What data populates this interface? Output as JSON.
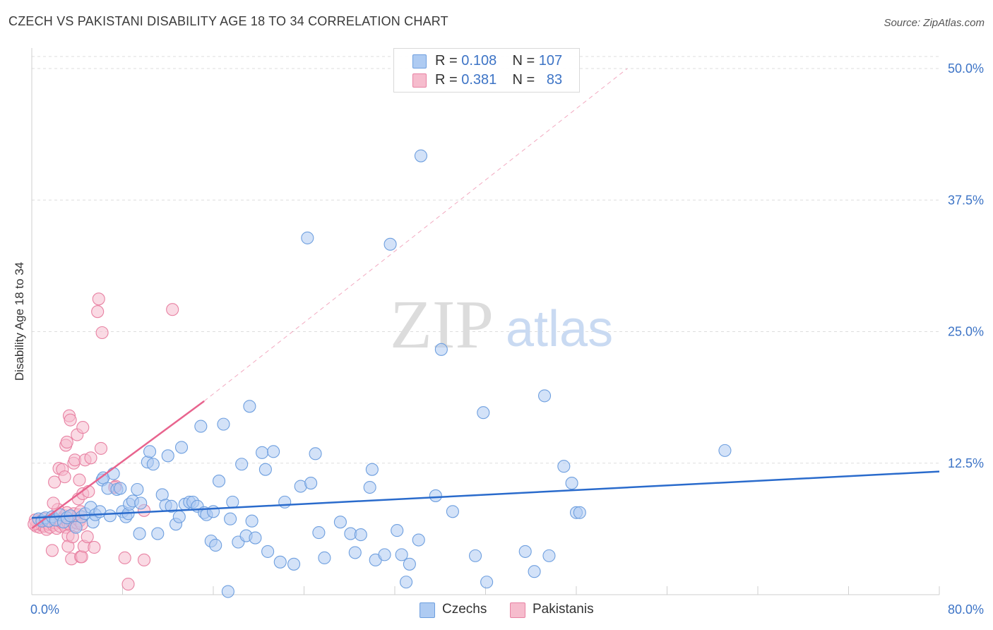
{
  "header": {
    "title": "CZECH VS PAKISTANI DISABILITY AGE 18 TO 34 CORRELATION CHART",
    "source": "Source: ZipAtlas.com"
  },
  "watermark": {
    "zip": "ZIP",
    "atlas": "atlas"
  },
  "legend": {
    "czech": {
      "r_label": "R =",
      "r_value": "0.108",
      "n_label": "N =",
      "n_value": "107",
      "color": "#aecbf2"
    },
    "pakistani": {
      "r_label": "R =",
      "r_value": "0.381",
      "n_label": "N =",
      "n_value": "83",
      "color": "#f6bccd"
    }
  },
  "bottom_legend": {
    "czechs": "Czechs",
    "pakistanis": "Pakistanis"
  },
  "colors": {
    "czech_fill": "#aecbf2",
    "czech_stroke": "#6e9fdf",
    "czech_line": "#2a6bcc",
    "pak_fill": "#f6bccd",
    "pak_stroke": "#e882a3",
    "pak_line": "#e8648e",
    "tick_text": "#3d74c6",
    "grid": "#dddddd"
  },
  "chart_data": {
    "type": "scatter",
    "title": "CZECH VS PAKISTANI DISABILITY AGE 18 TO 34 CORRELATION CHART",
    "xlabel": "",
    "ylabel": "Disability Age 18 to 34",
    "xlim": [
      0,
      80
    ],
    "ylim": [
      0,
      50
    ],
    "x_tick_labels": [
      {
        "value": 0,
        "label": "0.0%"
      },
      {
        "value": 80,
        "label": "80.0%"
      }
    ],
    "y_tick_labels": [
      {
        "value": 12.5,
        "label": "12.5%"
      },
      {
        "value": 25,
        "label": "25.0%"
      },
      {
        "value": 37.5,
        "label": "37.5%"
      },
      {
        "value": 50,
        "label": "50.0%"
      }
    ],
    "grid": true,
    "legend_position": "top-center",
    "series": [
      {
        "name": "Czechs",
        "color": "#aecbf2",
        "trendline": {
          "x": [
            0,
            80
          ],
          "y": [
            7.3,
            11.7
          ],
          "style": "solid"
        },
        "points": [
          [
            0.6,
            7.2
          ],
          [
            0.9,
            7.0
          ],
          [
            1.2,
            7.3
          ],
          [
            1.5,
            7.0
          ],
          [
            1.8,
            7.4
          ],
          [
            2.1,
            7.1
          ],
          [
            2.5,
            7.6
          ],
          [
            2.8,
            6.9
          ],
          [
            3.1,
            7.3
          ],
          [
            3.4,
            7.5
          ],
          [
            3.9,
            6.4
          ],
          [
            4.4,
            7.4
          ],
          [
            4.7,
            7.7
          ],
          [
            5.2,
            8.3
          ],
          [
            5.4,
            6.9
          ],
          [
            5.6,
            7.6
          ],
          [
            6.0,
            7.9
          ],
          [
            6.2,
            10.9
          ],
          [
            6.3,
            11.1
          ],
          [
            6.7,
            10.1
          ],
          [
            6.9,
            7.5
          ],
          [
            7.2,
            11.5
          ],
          [
            7.5,
            10.0
          ],
          [
            7.8,
            10.1
          ],
          [
            8.0,
            7.9
          ],
          [
            8.3,
            7.4
          ],
          [
            8.5,
            7.7
          ],
          [
            8.6,
            8.6
          ],
          [
            8.9,
            8.9
          ],
          [
            9.3,
            10.0
          ],
          [
            9.5,
            5.8
          ],
          [
            9.6,
            8.7
          ],
          [
            10.2,
            12.6
          ],
          [
            10.4,
            13.6
          ],
          [
            10.7,
            12.4
          ],
          [
            11.1,
            5.8
          ],
          [
            11.5,
            9.5
          ],
          [
            11.8,
            8.5
          ],
          [
            12.0,
            13.2
          ],
          [
            12.3,
            8.4
          ],
          [
            12.7,
            6.7
          ],
          [
            13.0,
            7.4
          ],
          [
            13.2,
            14.0
          ],
          [
            13.5,
            8.6
          ],
          [
            13.9,
            8.8
          ],
          [
            14.2,
            8.8
          ],
          [
            14.6,
            8.4
          ],
          [
            14.9,
            16.0
          ],
          [
            15.2,
            7.8
          ],
          [
            15.4,
            7.6
          ],
          [
            15.8,
            5.1
          ],
          [
            16.0,
            7.9
          ],
          [
            16.2,
            4.7
          ],
          [
            16.5,
            10.8
          ],
          [
            16.9,
            16.2
          ],
          [
            17.3,
            0.3
          ],
          [
            17.5,
            7.2
          ],
          [
            17.7,
            8.8
          ],
          [
            18.2,
            5.0
          ],
          [
            18.5,
            12.4
          ],
          [
            18.9,
            5.6
          ],
          [
            19.2,
            17.9
          ],
          [
            19.4,
            7.0
          ],
          [
            19.7,
            5.4
          ],
          [
            20.3,
            13.5
          ],
          [
            20.6,
            11.9
          ],
          [
            20.8,
            4.1
          ],
          [
            21.3,
            13.6
          ],
          [
            21.9,
            3.1
          ],
          [
            22.3,
            8.8
          ],
          [
            23.1,
            2.9
          ],
          [
            23.7,
            10.3
          ],
          [
            24.3,
            33.9
          ],
          [
            24.6,
            10.6
          ],
          [
            25.0,
            13.4
          ],
          [
            25.3,
            5.9
          ],
          [
            25.8,
            3.5
          ],
          [
            27.2,
            6.9
          ],
          [
            28.1,
            5.8
          ],
          [
            28.5,
            4.0
          ],
          [
            29.0,
            5.7
          ],
          [
            29.8,
            10.2
          ],
          [
            30.0,
            11.9
          ],
          [
            30.3,
            3.3
          ],
          [
            31.1,
            3.8
          ],
          [
            31.6,
            33.3
          ],
          [
            32.2,
            6.1
          ],
          [
            32.6,
            3.8
          ],
          [
            33.0,
            1.2
          ],
          [
            33.3,
            2.9
          ],
          [
            34.1,
            5.2
          ],
          [
            34.3,
            41.7
          ],
          [
            35.6,
            9.4
          ],
          [
            36.1,
            23.3
          ],
          [
            37.1,
            7.9
          ],
          [
            39.1,
            3.7
          ],
          [
            39.8,
            17.3
          ],
          [
            40.1,
            1.2
          ],
          [
            43.5,
            4.1
          ],
          [
            44.3,
            2.2
          ],
          [
            45.2,
            18.9
          ],
          [
            45.6,
            3.7
          ],
          [
            46.9,
            12.2
          ],
          [
            47.6,
            10.6
          ],
          [
            48.0,
            7.8
          ],
          [
            48.3,
            7.8
          ],
          [
            61.1,
            13.7
          ]
        ]
      },
      {
        "name": "Pakistanis",
        "color": "#f6bccd",
        "trendline": {
          "x": [
            0,
            15.2
          ],
          "y": [
            6.3,
            18.4
          ],
          "style": "solid",
          "dashed_extension_to": [
            52.5,
            50
          ]
        },
        "points": [
          [
            0.4,
            6.5
          ],
          [
            0.5,
            6.8
          ],
          [
            0.6,
            7.0
          ],
          [
            0.7,
            6.4
          ],
          [
            0.8,
            6.9
          ],
          [
            0.9,
            6.6
          ],
          [
            1.0,
            7.2
          ],
          [
            1.1,
            6.5
          ],
          [
            1.2,
            6.9
          ],
          [
            1.3,
            6.2
          ],
          [
            1.4,
            7.0
          ],
          [
            1.5,
            6.7
          ],
          [
            1.6,
            6.4
          ],
          [
            1.7,
            6.9
          ],
          [
            1.8,
            7.4
          ],
          [
            1.9,
            6.6
          ],
          [
            2.0,
            7.1
          ],
          [
            2.1,
            6.8
          ],
          [
            2.2,
            6.3
          ],
          [
            2.3,
            8.1
          ],
          [
            2.4,
            7.0
          ],
          [
            2.5,
            6.5
          ],
          [
            2.6,
            6.9
          ],
          [
            2.7,
            7.2
          ],
          [
            2.8,
            6.7
          ],
          [
            2.9,
            7.5
          ],
          [
            3.0,
            6.4
          ],
          [
            3.1,
            7.8
          ],
          [
            3.2,
            6.8
          ],
          [
            3.3,
            7.1
          ],
          [
            3.4,
            6.6
          ],
          [
            3.5,
            7.4
          ],
          [
            3.6,
            6.9
          ],
          [
            3.7,
            7.7
          ],
          [
            3.8,
            6.5
          ],
          [
            3.9,
            7.2
          ],
          [
            4.0,
            6.8
          ],
          [
            4.1,
            7.6
          ],
          [
            4.2,
            7.0
          ],
          [
            4.3,
            7.9
          ],
          [
            4.4,
            6.7
          ],
          [
            0.3,
            7.1
          ],
          [
            0.2,
            6.7
          ],
          [
            1.9,
            8.7
          ],
          [
            1.8,
            4.2
          ],
          [
            2.0,
            10.7
          ],
          [
            2.4,
            12.0
          ],
          [
            2.7,
            11.9
          ],
          [
            2.9,
            11.2
          ],
          [
            3.0,
            14.2
          ],
          [
            3.1,
            14.5
          ],
          [
            3.2,
            5.6
          ],
          [
            3.2,
            4.6
          ],
          [
            3.3,
            17.0
          ],
          [
            3.4,
            16.6
          ],
          [
            3.5,
            3.4
          ],
          [
            3.6,
            5.5
          ],
          [
            3.7,
            12.5
          ],
          [
            3.8,
            12.8
          ],
          [
            4.0,
            15.2
          ],
          [
            4.1,
            9.1
          ],
          [
            4.2,
            10.9
          ],
          [
            4.3,
            3.6
          ],
          [
            4.4,
            3.6
          ],
          [
            4.5,
            15.9
          ],
          [
            4.5,
            9.6
          ],
          [
            4.6,
            4.6
          ],
          [
            4.7,
            12.8
          ],
          [
            4.9,
            5.5
          ],
          [
            5.0,
            9.8
          ],
          [
            5.2,
            13.0
          ],
          [
            5.5,
            4.5
          ],
          [
            5.9,
            28.1
          ],
          [
            5.8,
            26.9
          ],
          [
            6.2,
            24.9
          ],
          [
            6.1,
            13.9
          ],
          [
            7.4,
            10.3
          ],
          [
            7.3,
            10.2
          ],
          [
            8.2,
            3.5
          ],
          [
            8.5,
            1.0
          ],
          [
            9.9,
            3.3
          ],
          [
            9.9,
            8.0
          ],
          [
            12.4,
            27.1
          ]
        ]
      }
    ]
  }
}
